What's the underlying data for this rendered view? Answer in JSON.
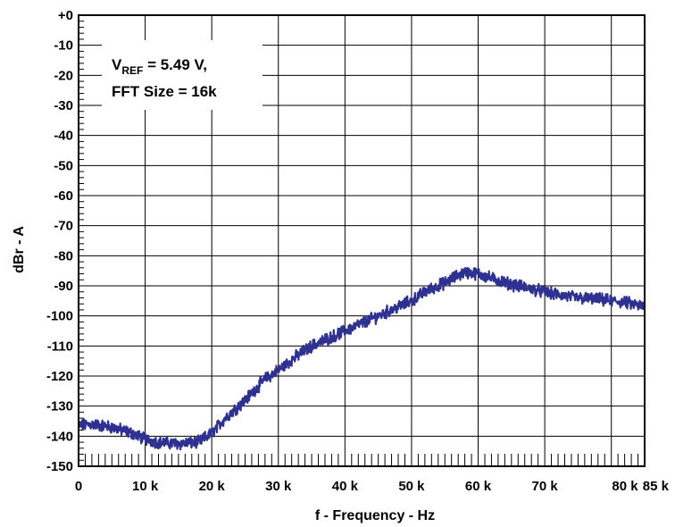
{
  "chart_data": {
    "type": "line",
    "xlabel": "f - Frequency - Hz",
    "ylabel": "dBr - A",
    "xlim": [
      0,
      85000
    ],
    "ylim": [
      -150,
      0
    ],
    "x_ticks": [
      0,
      10000,
      20000,
      30000,
      40000,
      50000,
      60000,
      70000,
      80000,
      85000
    ],
    "x_tick_labels": [
      "0",
      "10 k",
      "20 k",
      "30 k",
      "40 k",
      "50 k",
      "60 k",
      "70 k",
      "80 k",
      "85 k"
    ],
    "y_ticks": [
      0,
      -10,
      -20,
      -30,
      -40,
      -50,
      -60,
      -70,
      -80,
      -90,
      -100,
      -110,
      -120,
      -130,
      -140,
      -150
    ],
    "y_tick_labels": [
      "+0",
      "-10",
      "-20",
      "-30",
      "-40",
      "-50",
      "-60",
      "-70",
      "-80",
      "-90",
      "-100",
      "-110",
      "-120",
      "-130",
      "-140",
      "-150"
    ],
    "grid": true,
    "annotation": {
      "line1_main": "V",
      "line1_sub": "REF",
      "line1_rest": " = 5.49 V,",
      "line2": "FFT Size = 16k"
    },
    "series": [
      {
        "color": "#2e3192",
        "x": [
          0,
          2000,
          5000,
          8000,
          10000,
          12000,
          15000,
          18000,
          20000,
          22000,
          25000,
          28000,
          30000,
          33000,
          35000,
          38000,
          40000,
          43000,
          45000,
          48000,
          50000,
          52000,
          55000,
          57000,
          58000,
          60000,
          62000,
          65000,
          68000,
          70000,
          72000,
          75000,
          78000,
          80000,
          82000,
          85000
        ],
        "y": [
          -136.5,
          -136,
          -137,
          -139,
          -141,
          -142,
          -142.5,
          -142,
          -139,
          -134,
          -128,
          -121,
          -118,
          -113,
          -110,
          -107,
          -105,
          -102,
          -100,
          -97,
          -95,
          -92,
          -89,
          -86.5,
          -85.5,
          -86,
          -87.5,
          -89.5,
          -91,
          -92,
          -93,
          -94,
          -94.5,
          -95,
          -95.5,
          -97
        ]
      }
    ]
  }
}
